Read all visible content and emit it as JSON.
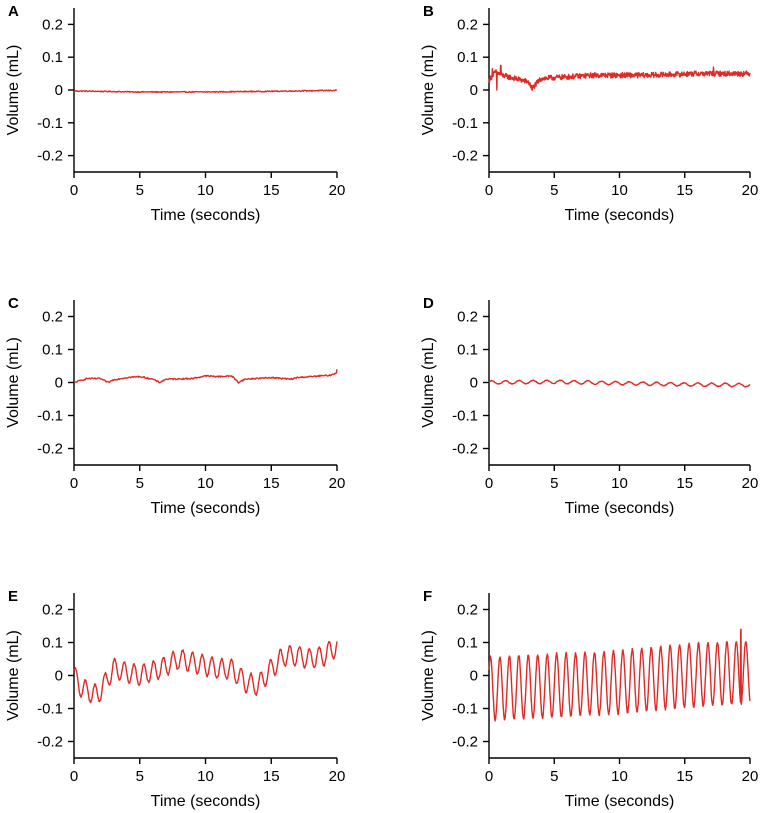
{
  "figure": {
    "background": "#ffffff",
    "trace_color": "#e02a26"
  },
  "chart_data": [
    {
      "type": "line",
      "panel": "A",
      "xlabel": "Time (seconds)",
      "ylabel": "Volume (mL)",
      "xlim": [
        0,
        20
      ],
      "ylim": [
        -0.25,
        0.25
      ],
      "xticks": [
        0,
        5,
        10,
        15,
        20
      ],
      "xtick_labels": [
        "0",
        "5",
        "10",
        "15",
        "20"
      ],
      "yticks": [
        0.2,
        0.1,
        0,
        -0.1,
        -0.2
      ],
      "ytick_labels": [
        "0.2",
        "0.1",
        "0",
        "-0.1",
        "-0.2"
      ],
      "series": [
        {
          "name": "A",
          "baseline": [
            [
              0,
              -0.003
            ],
            [
              5,
              -0.006
            ],
            [
              10,
              -0.006
            ],
            [
              15,
              -0.004
            ],
            [
              20,
              -0.001
            ]
          ],
          "noise": 0.0015,
          "oscillation": [
            0,
            0,
            0
          ],
          "spikes": [],
          "samples": 400
        }
      ]
    },
    {
      "type": "line",
      "panel": "B",
      "xlabel": "Time (seconds)",
      "ylabel": "Volume (mL)",
      "xlim": [
        0,
        20
      ],
      "ylim": [
        -0.25,
        0.25
      ],
      "xticks": [
        0,
        5,
        10,
        15,
        20
      ],
      "xtick_labels": [
        "0",
        "5",
        "10",
        "15",
        "20"
      ],
      "yticks": [
        0.2,
        0.1,
        0,
        -0.1,
        -0.2
      ],
      "ytick_labels": [
        "0.2",
        "0.1",
        "0",
        "-0.1",
        "-0.2"
      ],
      "series": [
        {
          "name": "B",
          "baseline": [
            [
              0,
              0.03
            ],
            [
              0.5,
              0.055
            ],
            [
              1,
              0.045
            ],
            [
              2,
              0.035
            ],
            [
              3,
              0.025
            ],
            [
              3.3,
              0.005
            ],
            [
              4,
              0.035
            ],
            [
              8,
              0.045
            ],
            [
              12,
              0.045
            ],
            [
              16,
              0.05
            ],
            [
              20,
              0.05
            ]
          ],
          "noise": 0.008,
          "oscillation": [
            0,
            0,
            0
          ],
          "spikes": [
            [
              0.25,
              0.065
            ],
            [
              0.6,
              0.0
            ],
            [
              0.9,
              0.075
            ],
            [
              3.3,
              0.0
            ],
            [
              17.2,
              0.07
            ]
          ],
          "samples": 700
        }
      ]
    },
    {
      "type": "line",
      "panel": "C",
      "xlabel": "Time (seconds)",
      "ylabel": "Volume (mL)",
      "xlim": [
        0,
        20
      ],
      "ylim": [
        -0.25,
        0.25
      ],
      "xticks": [
        0,
        5,
        10,
        15,
        20
      ],
      "xtick_labels": [
        "0",
        "5",
        "10",
        "15",
        "20"
      ],
      "yticks": [
        0.2,
        0.1,
        0,
        -0.1,
        -0.2
      ],
      "ytick_labels": [
        "0.2",
        "0.1",
        "0",
        "-0.1",
        "-0.2"
      ],
      "series": [
        {
          "name": "C",
          "baseline": [
            [
              0,
              0.0
            ],
            [
              1,
              0.012
            ],
            [
              2,
              0.012
            ],
            [
              2.6,
              0.0
            ],
            [
              3,
              0.008
            ],
            [
              4,
              0.015
            ],
            [
              5,
              0.018
            ],
            [
              6,
              0.01
            ],
            [
              6.5,
              0.0
            ],
            [
              7,
              0.01
            ],
            [
              9,
              0.012
            ],
            [
              10,
              0.02
            ],
            [
              11,
              0.018
            ],
            [
              12,
              0.02
            ],
            [
              12.5,
              0.0
            ],
            [
              13,
              0.01
            ],
            [
              15,
              0.015
            ],
            [
              16.5,
              0.01
            ],
            [
              17,
              0.015
            ],
            [
              19.5,
              0.022
            ],
            [
              20,
              0.03
            ]
          ],
          "noise": 0.002,
          "oscillation": [
            0,
            0,
            0
          ],
          "spikes": [
            [
              20,
              0.04
            ]
          ],
          "samples": 400
        }
      ]
    },
    {
      "type": "line",
      "panel": "D",
      "xlabel": "Time (seconds)",
      "ylabel": "Volume (mL)",
      "xlim": [
        0,
        20
      ],
      "ylim": [
        -0.25,
        0.25
      ],
      "xticks": [
        0,
        5,
        10,
        15,
        20
      ],
      "xtick_labels": [
        "0",
        "5",
        "10",
        "15",
        "20"
      ],
      "yticks": [
        0.2,
        0.1,
        0,
        -0.1,
        -0.2
      ],
      "ytick_labels": [
        "0.2",
        "0.1",
        "0",
        "-0.1",
        "-0.2"
      ],
      "series": [
        {
          "name": "D",
          "baseline": [
            [
              0,
              0.0
            ],
            [
              5,
              0.002
            ],
            [
              10,
              -0.002
            ],
            [
              15,
              -0.006
            ],
            [
              20,
              -0.008
            ]
          ],
          "noise": 0.001,
          "oscillation": [
            0.005,
            0.95,
            0.3
          ],
          "spikes": [],
          "samples": 500
        }
      ]
    },
    {
      "type": "line",
      "panel": "E",
      "xlabel": "Time (seconds)",
      "ylabel": "Volume (mL)",
      "xlim": [
        0,
        20
      ],
      "ylim": [
        -0.25,
        0.25
      ],
      "xticks": [
        0,
        5,
        10,
        15,
        20
      ],
      "xtick_labels": [
        "0",
        "5",
        "10",
        "15",
        "20"
      ],
      "yticks": [
        0.2,
        0.1,
        0,
        -0.1,
        -0.2
      ],
      "ytick_labels": [
        "0.2",
        "0.1",
        "0",
        "-0.1",
        "-0.2"
      ],
      "series": [
        {
          "name": "E",
          "baseline": [
            [
              0,
              0.0
            ],
            [
              0.6,
              -0.04
            ],
            [
              1.8,
              -0.06
            ],
            [
              3,
              0.02
            ],
            [
              4,
              0.01
            ],
            [
              5,
              0.0
            ],
            [
              6.5,
              0.02
            ],
            [
              8,
              0.05
            ],
            [
              9,
              0.04
            ],
            [
              10,
              0.03
            ],
            [
              11,
              0.02
            ],
            [
              12,
              0.02
            ],
            [
              13,
              -0.02
            ],
            [
              14,
              -0.03
            ],
            [
              15,
              0.02
            ],
            [
              16,
              0.06
            ],
            [
              17,
              0.06
            ],
            [
              18,
              0.05
            ],
            [
              19,
              0.06
            ],
            [
              20,
              0.09
            ]
          ],
          "noise": 0.003,
          "oscillation": [
            0.03,
            1.35,
            0.5
          ],
          "spikes": [],
          "samples": 600
        }
      ]
    },
    {
      "type": "line",
      "panel": "F",
      "xlabel": "Time (seconds)",
      "ylabel": "Volume (mL)",
      "xlim": [
        0,
        20
      ],
      "ylim": [
        -0.25,
        0.25
      ],
      "xticks": [
        0,
        5,
        10,
        15,
        20
      ],
      "xtick_labels": [
        "0",
        "5",
        "10",
        "15",
        "20"
      ],
      "yticks": [
        0.2,
        0.1,
        0,
        -0.1,
        -0.2
      ],
      "ytick_labels": [
        "0.2",
        "0.1",
        "0",
        "-0.1",
        "-0.2"
      ],
      "series": [
        {
          "name": "F",
          "baseline": [
            [
              0,
              -0.04
            ],
            [
              5,
              -0.03
            ],
            [
              10,
              -0.02
            ],
            [
              15,
              0.0
            ],
            [
              20,
              0.01
            ]
          ],
          "noise": 0.004,
          "oscillation": [
            0.095,
            1.38,
            0.6
          ],
          "spikes": [
            [
              19.3,
              0.14
            ]
          ],
          "samples": 900
        }
      ]
    }
  ]
}
